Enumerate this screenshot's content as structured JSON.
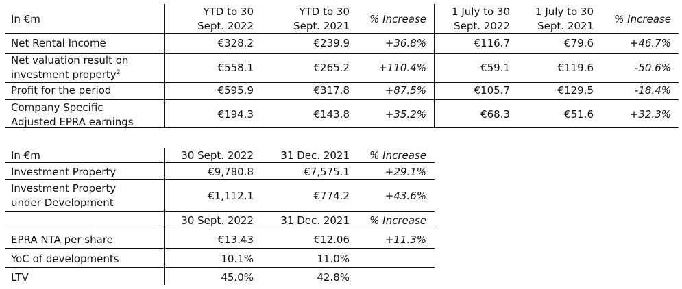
{
  "table1": {
    "label_header": "In €m",
    "col_headers": [
      {
        "line1": "YTD to 30",
        "line2": "Sept. 2022"
      },
      {
        "line1": "YTD to 30",
        "line2": "Sept. 2021"
      },
      {
        "line1": "% Increase",
        "line2": ""
      },
      {
        "line1": "1 July to 30",
        "line2": "Sept. 2022"
      },
      {
        "line1": "1 July to 30",
        "line2": "Sept. 2021"
      },
      {
        "line1": "% Increase",
        "line2": ""
      }
    ],
    "rows": [
      {
        "label1": "Net Rental Income",
        "label2": "",
        "footnote": "",
        "values": [
          "€328.2",
          "€239.9",
          "+36.8%",
          "€116.7",
          "€79.6",
          "+46.7%"
        ]
      },
      {
        "label1": "Net valuation result on",
        "label2": "investment property",
        "footnote": "2",
        "values": [
          "€558.1",
          "€265.2",
          "+110.4%",
          "€59.1",
          "€119.6",
          "-50.6%"
        ]
      },
      {
        "label1": "Profit for the period",
        "label2": "",
        "footnote": "",
        "values": [
          "€595.9",
          "€317.8",
          "+87.5%",
          "€105.7",
          "€129.5",
          "-18.4%"
        ]
      },
      {
        "label1": "Company Specific",
        "label2": "Adjusted EPRA earnings",
        "footnote": "",
        "values": [
          "€194.3",
          "€143.8",
          "+35.2%",
          "€68.3",
          "€51.6",
          "+32.3%"
        ]
      }
    ]
  },
  "table2": {
    "label_header": "In €m",
    "col_headers": [
      "30 Sept. 2022",
      "31 Dec. 2021",
      "% Increase"
    ],
    "rows": [
      {
        "label1": "Investment Property",
        "label2": "",
        "values": [
          "€9,780.8",
          "€7,575.1",
          "+29.1%"
        ]
      },
      {
        "label1": "Investment Property",
        "label2": "under Development",
        "values": [
          "€1,112.1",
          "€774.2",
          "+43.6%"
        ]
      }
    ],
    "col_headers_2": [
      "30 Sept. 2022",
      "31 Dec. 2021",
      "% Increase"
    ],
    "rows_2": [
      {
        "label": "EPRA NTA per share",
        "values": [
          "€13.43",
          "€12.06",
          "+11.3%"
        ]
      },
      {
        "label": "YoC of developments",
        "values": [
          "10.1%",
          "11.0%",
          ""
        ]
      },
      {
        "label": "LTV",
        "values": [
          "45.0%",
          "42.8%",
          ""
        ]
      }
    ]
  }
}
